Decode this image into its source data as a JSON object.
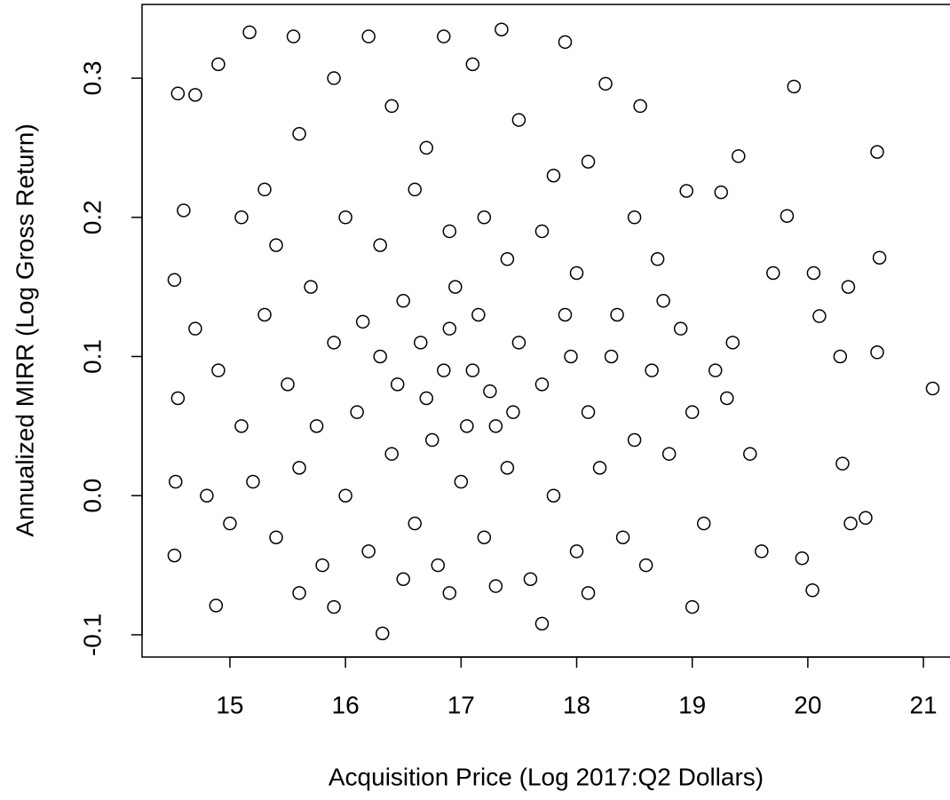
{
  "chart_data": {
    "type": "scatter",
    "x_label": "Acquisition Price (Log 2017:Q2 Dollars)",
    "y_label": "Annualized MIRR (Log Gross Return)",
    "xlim": [
      14.24,
      21.23
    ],
    "ylim": [
      -0.116,
      0.353
    ],
    "xticks": [
      15,
      16,
      17,
      18,
      19,
      20,
      21
    ],
    "yticks": [
      -0.1,
      {
        "value": 0,
        "label": "0.0"
      },
      0.1,
      0.2,
      0.3
    ],
    "color": "#000000",
    "x": [
      21.08,
      20.6,
      20.62,
      19.88,
      20.35,
      20.05,
      20.1,
      20.5,
      20.3,
      20.04,
      20.6,
      19.82,
      19.4,
      19.25,
      18.95,
      20.28,
      20.37,
      19.95,
      19.7,
      19.0,
      16.32,
      17.7,
      14.88,
      15.17,
      16.85,
      17.35,
      17.9,
      15.55,
      16.2,
      14.55,
      14.7,
      18.25,
      18.55,
      14.52,
      14.55,
      14.52,
      14.53,
      14.6,
      14.9,
      15.3,
      15.6,
      15.9,
      16.4,
      16.7,
      17.1,
      17.5,
      17.8,
      18.1,
      18.5,
      18.7,
      14.7,
      14.9,
      15.1,
      15.3,
      15.5,
      15.7,
      15.9,
      16.1,
      16.3,
      16.5,
      16.7,
      16.9,
      17.1,
      17.3,
      17.5,
      17.7,
      17.9,
      18.1,
      18.3,
      18.5,
      14.8,
      15.0,
      15.2,
      15.4,
      15.6,
      15.8,
      16.0,
      16.2,
      16.4,
      16.6,
      16.8,
      17.0,
      17.2,
      17.4,
      17.6,
      17.8,
      18.0,
      18.2,
      18.4,
      18.6,
      18.8,
      19.0,
      19.2,
      19.35,
      19.5,
      19.6,
      19.1,
      18.9,
      18.75,
      19.3,
      16.0,
      16.3,
      16.6,
      16.9,
      17.2,
      17.4,
      17.7,
      18.0,
      15.4,
      15.1,
      16.5,
      16.9,
      17.3,
      15.9,
      15.6,
      18.1,
      16.75,
      17.05,
      17.15,
      16.45,
      16.85,
      17.25,
      17.45,
      16.65,
      16.15,
      15.75,
      18.35,
      18.65,
      17.95,
      16.95
    ],
    "values": [
      0.077,
      0.247,
      0.171,
      0.294,
      0.15,
      0.16,
      0.129,
      -0.016,
      0.023,
      -0.068,
      0.103,
      0.201,
      0.244,
      0.218,
      0.219,
      0.1,
      -0.02,
      -0.045,
      0.16,
      -0.08,
      -0.099,
      -0.092,
      -0.079,
      0.333,
      0.33,
      0.335,
      0.326,
      0.33,
      0.33,
      0.289,
      0.288,
      0.296,
      0.28,
      0.155,
      0.07,
      -0.043,
      0.01,
      0.205,
      0.31,
      0.22,
      0.26,
      0.3,
      0.28,
      0.25,
      0.31,
      0.27,
      0.23,
      0.24,
      0.2,
      0.17,
      0.12,
      0.09,
      0.05,
      0.13,
      0.08,
      0.15,
      0.11,
      0.06,
      0.1,
      0.14,
      0.07,
      0.12,
      0.09,
      0.05,
      0.11,
      0.08,
      0.13,
      0.06,
      0.1,
      0.04,
      0,
      -0.02,
      0.01,
      -0.03,
      0.02,
      -0.05,
      0,
      -0.04,
      0.03,
      -0.02,
      -0.05,
      0.01,
      -0.03,
      0.02,
      -0.06,
      0,
      -0.04,
      0.02,
      -0.03,
      -0.05,
      0.03,
      0.06,
      0.09,
      0.11,
      0.03,
      -0.04,
      -0.02,
      0.12,
      0.14,
      0.07,
      0.2,
      0.18,
      0.22,
      0.19,
      0.2,
      0.17,
      0.19,
      0.16,
      0.18,
      0.2,
      -0.06,
      -0.07,
      -0.065,
      -0.08,
      -0.07,
      -0.07,
      0.04,
      0.05,
      0.13,
      0.08,
      0.09,
      0.075,
      0.06,
      0.11,
      0.125,
      0.05,
      0.13,
      0.09,
      0.1,
      0.15
    ]
  }
}
